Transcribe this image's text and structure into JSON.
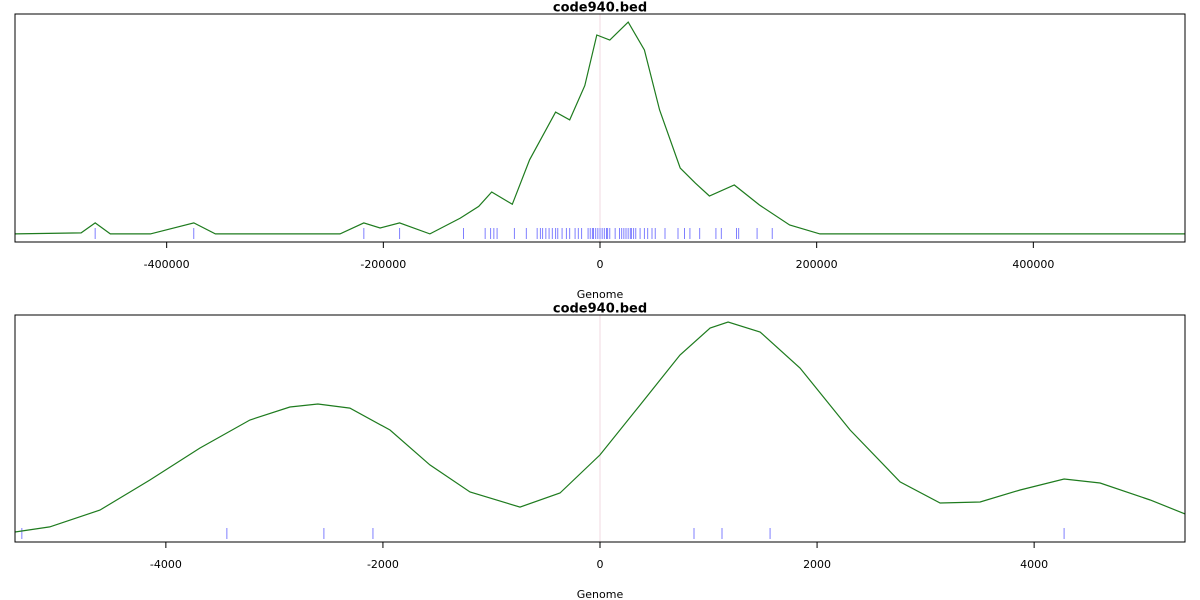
{
  "chart_data": [
    {
      "type": "density",
      "title": "code940.bed",
      "x_label": "Genome",
      "x": [
        -540000,
        -479000,
        -466000,
        -452000,
        -415000,
        -375000,
        -355000,
        -240000,
        -218000,
        -203000,
        -185000,
        -157000,
        -129000,
        -112000,
        -100000,
        -81000,
        -65000,
        -41000,
        -28000,
        -14000,
        -3000,
        9000,
        26000,
        41000,
        55000,
        74000,
        88000,
        101000,
        124000,
        147000,
        175000,
        203000,
        540000
      ],
      "values": [
        0,
        0.005,
        0.052,
        0,
        0,
        0.052,
        0,
        0,
        0.052,
        0.028,
        0.052,
        0,
        0.075,
        0.13,
        0.198,
        0.14,
        0.35,
        0.575,
        0.538,
        0.7,
        0.939,
        0.915,
        1.0,
        0.868,
        0.585,
        0.311,
        0.24,
        0.179,
        0.231,
        0.137,
        0.042,
        0,
        0
      ],
      "rug": [
        -466000,
        -375000,
        -218000,
        -185000,
        -126000,
        -106000,
        -101000,
        -98000,
        -95000,
        -79000,
        -68000,
        -58000,
        -55000,
        -53000,
        -50000,
        -47000,
        -44000,
        -41000,
        -39000,
        -35000,
        -31000,
        -28000,
        -23000,
        -20000,
        -17000,
        -11000,
        -9000,
        -7000,
        -6000,
        -4000,
        -2000,
        0,
        2000,
        4000,
        6000,
        7000,
        9000,
        14000,
        18000,
        20000,
        22000,
        24000,
        26000,
        28000,
        29000,
        31000,
        33000,
        37000,
        41000,
        44000,
        48000,
        51000,
        60000,
        72000,
        78000,
        83000,
        92000,
        107000,
        112000,
        126000,
        128000,
        145000,
        159000
      ],
      "color": "#1e7b1e",
      "rug_color": "#7f7fff",
      "xlim": [
        -540000,
        540000
      ],
      "xticks": [
        -400000,
        -200000,
        0,
        200000,
        400000
      ],
      "ylim": [
        -0.038,
        1.038
      ]
    },
    {
      "type": "density",
      "title": "code940.bed",
      "x_label": "Genome",
      "x": [
        -5390,
        -5070,
        -4608,
        -4147,
        -3687,
        -3226,
        -2857,
        -2599,
        -2304,
        -1935,
        -1567,
        -1198,
        -737,
        -369,
        0,
        369,
        737,
        1014,
        1180,
        1475,
        1843,
        2304,
        2765,
        3134,
        3502,
        3871,
        4276,
        4608,
        5069,
        5390
      ],
      "values": [
        0.014,
        0.038,
        0.117,
        0.258,
        0.408,
        0.54,
        0.601,
        0.615,
        0.596,
        0.493,
        0.329,
        0.202,
        0.131,
        0.197,
        0.376,
        0.61,
        0.845,
        0.972,
        1.0,
        0.953,
        0.784,
        0.493,
        0.249,
        0.15,
        0.155,
        0.211,
        0.263,
        0.244,
        0.164,
        0.099
      ],
      "rug": [
        -5327,
        -3438,
        -2544,
        -2092,
        866,
        1124,
        1567,
        4276
      ],
      "color": "#1e7b1e",
      "rug_color": "#7f7fff",
      "xlim": [
        -5390,
        5390
      ],
      "xticks": [
        -4000,
        -2000,
        0,
        2000,
        4000
      ],
      "ylim": [
        -0.033,
        1.033
      ]
    }
  ]
}
